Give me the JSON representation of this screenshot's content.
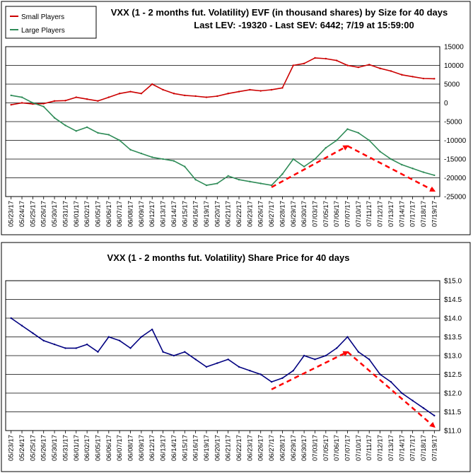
{
  "chart_data": [
    {
      "type": "line",
      "title": "VXX (1 - 2 months fut. Volatility) EVF (in thousand shares) by Size for 40 days",
      "subtitle": "Last LEV: -19320 - Last SEV: 6442; 7/19 at 15:59:00",
      "legend": {
        "placement": "top-left",
        "entries": [
          "Small Players",
          "Large Players"
        ]
      },
      "ylim": [
        -25000,
        15000
      ],
      "yticks": [
        15000,
        10000,
        5000,
        0,
        -5000,
        -10000,
        -15000,
        -20000,
        -25000
      ],
      "ytick_labels": [
        "15000",
        "10000",
        "5000",
        "0",
        "-5000",
        "-10000",
        "-15000",
        "-20000",
        "-25000"
      ],
      "grid": true,
      "x_dates": [
        "05/23/17",
        "05/24/17",
        "05/25/17",
        "05/26/17",
        "05/30/17",
        "05/31/17",
        "06/01/17",
        "06/02/17",
        "06/05/17",
        "06/06/17",
        "06/07/17",
        "06/08/17",
        "06/09/17",
        "06/12/17",
        "06/13/17",
        "06/14/17",
        "06/15/17",
        "06/16/17",
        "06/19/17",
        "06/20/17",
        "06/21/17",
        "06/22/17",
        "06/23/17",
        "06/26/17",
        "06/27/17",
        "06/28/17",
        "06/29/17",
        "06/30/17",
        "07/03/17",
        "07/05/17",
        "07/06/17",
        "07/07/17",
        "07/10/17",
        "07/11/17",
        "07/12/17",
        "07/13/17",
        "07/14/17",
        "07/17/17",
        "07/18/17",
        "07/19/17"
      ],
      "series": [
        {
          "name": "Small Players",
          "color": "#cc0000",
          "values": [
            -500,
            0,
            -300,
            -200,
            500,
            600,
            1500,
            1000,
            500,
            1500,
            2500,
            3000,
            2500,
            5000,
            3500,
            2500,
            2000,
            1800,
            1500,
            1800,
            2500,
            3000,
            3500,
            3200,
            3500,
            4000,
            10000,
            10500,
            12000,
            11800,
            11300,
            10000,
            9500,
            10200,
            9200,
            8500,
            7500,
            7000,
            6500,
            6442
          ]
        },
        {
          "name": "Large Players",
          "color": "#2e8b57",
          "values": [
            2000,
            1500,
            0,
            -1000,
            -4000,
            -6000,
            -7500,
            -6500,
            -8000,
            -8500,
            -10000,
            -12500,
            -13500,
            -14500,
            -15000,
            -15500,
            -17000,
            -20500,
            -22000,
            -21500,
            -19500,
            -20500,
            -21000,
            -21500,
            -22000,
            -19000,
            -15000,
            -17000,
            -15000,
            -12000,
            -10000,
            -7000,
            -8000,
            -10000,
            -13000,
            -15000,
            -16500,
            -17500,
            -18500,
            -19320
          ]
        }
      ],
      "trend_arrows": [
        {
          "from": [
            "06/27/17",
            -22500
          ],
          "to": [
            "07/07/17",
            -11500
          ]
        },
        {
          "from": [
            "07/07/17",
            -11500
          ],
          "to": [
            "07/19/17",
            -23500
          ]
        }
      ]
    },
    {
      "type": "line",
      "title": "VXX (1 - 2 months fut. Volatility) Share Price for 40 days",
      "ylim": [
        11.0,
        15.0
      ],
      "yticks": [
        15.0,
        14.5,
        14.0,
        13.5,
        13.0,
        12.5,
        12.0,
        11.5,
        11.0
      ],
      "ytick_labels": [
        "$15.0",
        "$14.5",
        "$14.0",
        "$13.5",
        "$13.0",
        "$12.5",
        "$12.0",
        "$11.5",
        "$11.0"
      ],
      "grid": true,
      "x_dates": [
        "05/23/17",
        "05/24/17",
        "05/25/17",
        "05/26/17",
        "05/30/17",
        "05/31/17",
        "06/01/17",
        "06/02/17",
        "06/05/17",
        "06/06/17",
        "06/07/17",
        "06/08/17",
        "06/09/17",
        "06/12/17",
        "06/13/17",
        "06/14/17",
        "06/15/17",
        "06/16/17",
        "06/19/17",
        "06/20/17",
        "06/21/17",
        "06/22/17",
        "06/23/17",
        "06/26/17",
        "06/27/17",
        "06/28/17",
        "06/29/17",
        "06/30/17",
        "07/03/17",
        "07/05/17",
        "07/06/17",
        "07/07/17",
        "07/10/17",
        "07/11/17",
        "07/12/17",
        "07/13/17",
        "07/14/17",
        "07/17/17",
        "07/18/17",
        "07/19/17"
      ],
      "series": [
        {
          "color": "#000080",
          "values": [
            14.0,
            13.8,
            13.6,
            13.4,
            13.3,
            13.2,
            13.2,
            13.3,
            13.1,
            13.5,
            13.4,
            13.2,
            13.5,
            13.7,
            13.1,
            13.0,
            13.1,
            12.9,
            12.7,
            12.8,
            12.9,
            12.7,
            12.6,
            12.5,
            12.3,
            12.4,
            12.6,
            13.0,
            12.9,
            13.0,
            13.2,
            13.5,
            13.1,
            12.9,
            12.5,
            12.3,
            12.0,
            11.8,
            11.6,
            11.4
          ]
        }
      ],
      "trend_arrows": [
        {
          "from": [
            "06/27/17",
            12.1
          ],
          "to": [
            "07/07/17",
            13.1
          ]
        },
        {
          "from": [
            "07/07/17",
            13.1
          ],
          "to": [
            "07/19/17",
            11.1
          ]
        }
      ]
    }
  ]
}
